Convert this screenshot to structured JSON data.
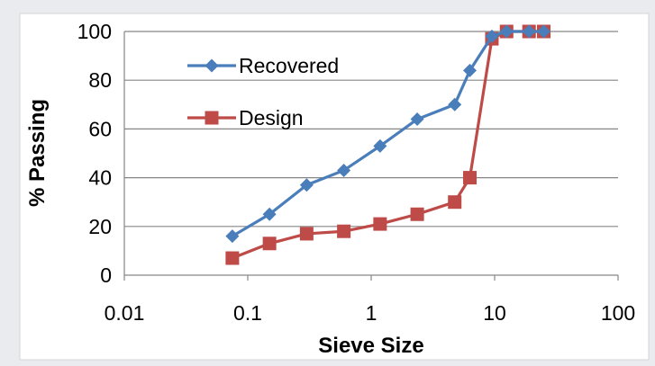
{
  "chart_data": {
    "type": "line",
    "x_scale": "log",
    "xlabel": "Sieve Size",
    "ylabel": "% Passing",
    "xlim": [
      0.01,
      100
    ],
    "ylim": [
      0,
      100
    ],
    "x_ticks": [
      {
        "value": 0.01,
        "label": "0.01"
      },
      {
        "value": 0.1,
        "label": "0.1"
      },
      {
        "value": 1,
        "label": "1"
      },
      {
        "value": 10,
        "label": "10"
      },
      {
        "value": 100,
        "label": "100"
      }
    ],
    "y_ticks": [
      {
        "value": 0,
        "label": "0"
      },
      {
        "value": 20,
        "label": "20"
      },
      {
        "value": 40,
        "label": "40"
      },
      {
        "value": 60,
        "label": "60"
      },
      {
        "value": 80,
        "label": "80"
      },
      {
        "value": 100,
        "label": "100"
      }
    ],
    "grid": "horizontal",
    "legend": "top-left, inside plot",
    "series": [
      {
        "name": "Recovered",
        "color": "#4a7ebb",
        "marker": "diamond",
        "x": [
          0.075,
          0.15,
          0.3,
          0.6,
          1.18,
          2.36,
          4.75,
          6.3,
          9.5,
          12.5,
          19,
          25
        ],
        "y": [
          16,
          25,
          37,
          43,
          53,
          64,
          70,
          84,
          98,
          100,
          100,
          100
        ]
      },
      {
        "name": "Design",
        "color": "#be4b48",
        "marker": "square",
        "x": [
          0.075,
          0.15,
          0.3,
          0.6,
          1.18,
          2.36,
          4.75,
          6.3,
          9.5,
          12.5,
          19,
          25
        ],
        "y": [
          7,
          13,
          17,
          18,
          21,
          25,
          30,
          40,
          97,
          100,
          100,
          100
        ]
      }
    ]
  },
  "colors": {
    "page_background": "#e9ebee",
    "plot_background": "#ffffff",
    "gridline": "#868686"
  }
}
